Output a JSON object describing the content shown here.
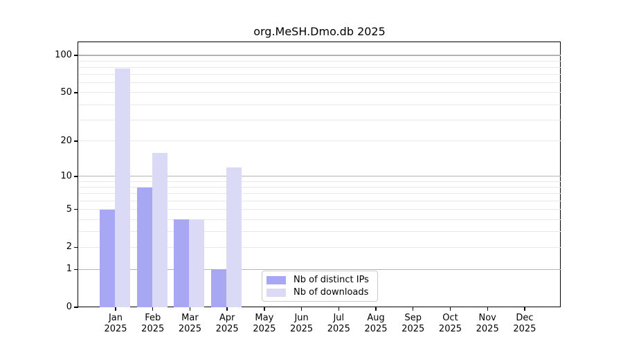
{
  "chart_data": {
    "type": "bar",
    "title": "org.MeSH.Dmo.db 2025",
    "categories": [
      "Jan",
      "Feb",
      "Mar",
      "Apr",
      "May",
      "Jun",
      "Jul",
      "Aug",
      "Sep",
      "Oct",
      "Nov",
      "Dec"
    ],
    "category_year": "2025",
    "series": [
      {
        "name": "Nb of distinct IPs",
        "color": "#a7a7f3",
        "values": [
          5,
          8,
          4,
          1,
          0,
          0,
          0,
          0,
          0,
          0,
          0,
          0
        ]
      },
      {
        "name": "Nb of downloads",
        "color": "#dadaf7",
        "values": [
          78,
          16,
          4,
          12,
          0,
          0,
          0,
          0,
          0,
          0,
          0,
          0
        ]
      }
    ],
    "yscale": "log10(1+v)",
    "ylim": [
      0,
      126
    ],
    "y_tick_values": [
      0,
      1,
      2,
      5,
      10,
      20,
      50,
      100
    ],
    "y_tick_labels": [
      "0",
      "1",
      "2",
      "5",
      "10",
      "20",
      "50",
      "100"
    ],
    "y_major_gridlines": [
      1,
      10,
      100
    ],
    "y_minor_gridlines": [
      2,
      3,
      4,
      5,
      6,
      7,
      8,
      9,
      20,
      30,
      40,
      50,
      60,
      70,
      80,
      90
    ],
    "grid": true,
    "legend_position": "bottom-center"
  },
  "styles": {
    "major_grid_color": "#b2b2b2",
    "minor_grid_color": "#e8e8e8",
    "axis_color": "#000000",
    "legend_border_color": "#c9c9c9",
    "background_color": "#ffffff"
  }
}
